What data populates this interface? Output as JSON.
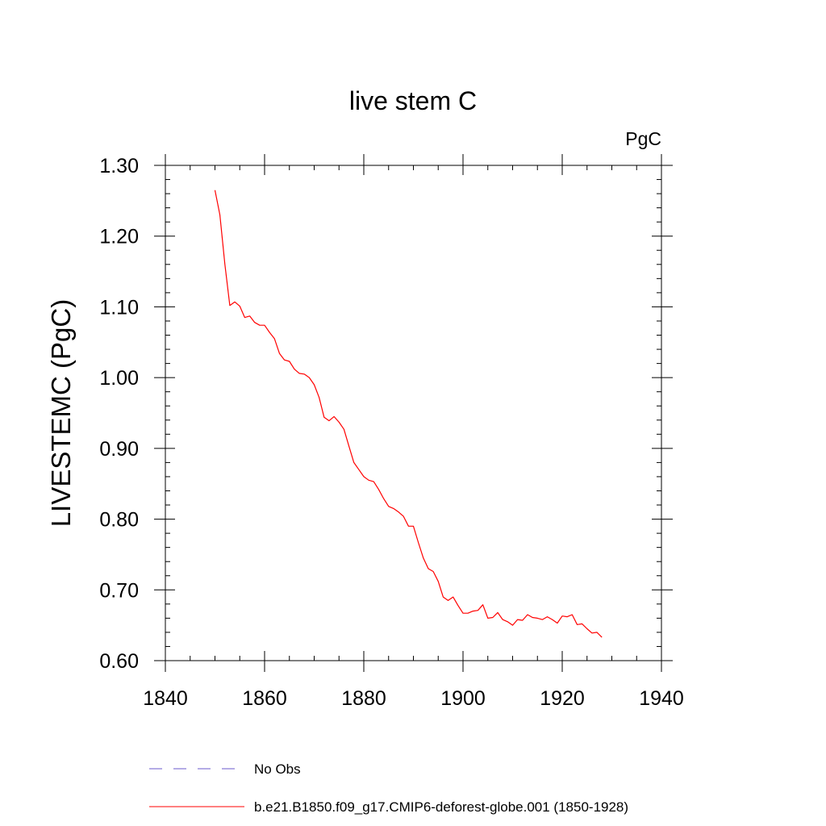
{
  "chart_data": {
    "type": "line",
    "title": "live stem C",
    "units_label": "PgC",
    "xlabel": "",
    "ylabel": "LIVESTEMC  (PgC)",
    "xlim": [
      1840,
      1940
    ],
    "ylim": [
      0.6,
      1.3
    ],
    "x_ticks": [
      1840,
      1860,
      1880,
      1900,
      1920,
      1940
    ],
    "x_tick_labels": [
      "1840",
      "1860",
      "1880",
      "1900",
      "1920",
      "1940"
    ],
    "y_ticks": [
      0.6,
      0.7,
      0.8,
      0.9,
      1.0,
      1.1,
      1.2,
      1.3
    ],
    "y_tick_labels": [
      "0.60",
      "0.70",
      "0.80",
      "0.90",
      "1.00",
      "1.10",
      "1.20",
      "1.30"
    ],
    "grid": false,
    "legend_position": "bottom",
    "legend": [
      {
        "label": "No Obs",
        "style": "dashed",
        "color": "#6a5acd"
      },
      {
        "label": "b.e21.B1850.f09_g17.CMIP6-deforest-globe.001 (1850-1928)",
        "style": "solid",
        "color": "#ff0000"
      }
    ],
    "series": [
      {
        "name": "b.e21.B1850.f09_g17.CMIP6-deforest-globe.001 (1850-1928)",
        "color": "#ff0000",
        "x": [
          1850,
          1851,
          1852,
          1853,
          1854,
          1855,
          1856,
          1857,
          1858,
          1859,
          1860,
          1861,
          1862,
          1863,
          1864,
          1865,
          1866,
          1867,
          1868,
          1869,
          1870,
          1871,
          1872,
          1873,
          1874,
          1875,
          1876,
          1877,
          1878,
          1879,
          1880,
          1881,
          1882,
          1883,
          1884,
          1885,
          1886,
          1887,
          1888,
          1889,
          1890,
          1891,
          1892,
          1893,
          1894,
          1895,
          1896,
          1897,
          1898,
          1899,
          1900,
          1901,
          1902,
          1903,
          1904,
          1905,
          1906,
          1907,
          1908,
          1909,
          1910,
          1911,
          1912,
          1913,
          1914,
          1915,
          1916,
          1917,
          1918,
          1919,
          1920,
          1921,
          1922,
          1923,
          1924,
          1925,
          1926,
          1927,
          1928
        ],
        "values": [
          1.265,
          1.23,
          1.16,
          1.102,
          1.107,
          1.101,
          1.085,
          1.087,
          1.078,
          1.074,
          1.074,
          1.064,
          1.055,
          1.034,
          1.025,
          1.023,
          1.012,
          1.006,
          1.005,
          1.0,
          0.99,
          0.972,
          0.944,
          0.939,
          0.945,
          0.937,
          0.927,
          0.903,
          0.88,
          0.87,
          0.86,
          0.855,
          0.853,
          0.842,
          0.829,
          0.818,
          0.815,
          0.81,
          0.804,
          0.79,
          0.79,
          0.767,
          0.745,
          0.73,
          0.726,
          0.712,
          0.69,
          0.685,
          0.69,
          0.678,
          0.667,
          0.667,
          0.67,
          0.671,
          0.679,
          0.66,
          0.661,
          0.668,
          0.658,
          0.655,
          0.65,
          0.658,
          0.657,
          0.665,
          0.661,
          0.66,
          0.658,
          0.662,
          0.658,
          0.653,
          0.663,
          0.662,
          0.665,
          0.651,
          0.652,
          0.645,
          0.639,
          0.64,
          0.633
        ]
      }
    ]
  }
}
